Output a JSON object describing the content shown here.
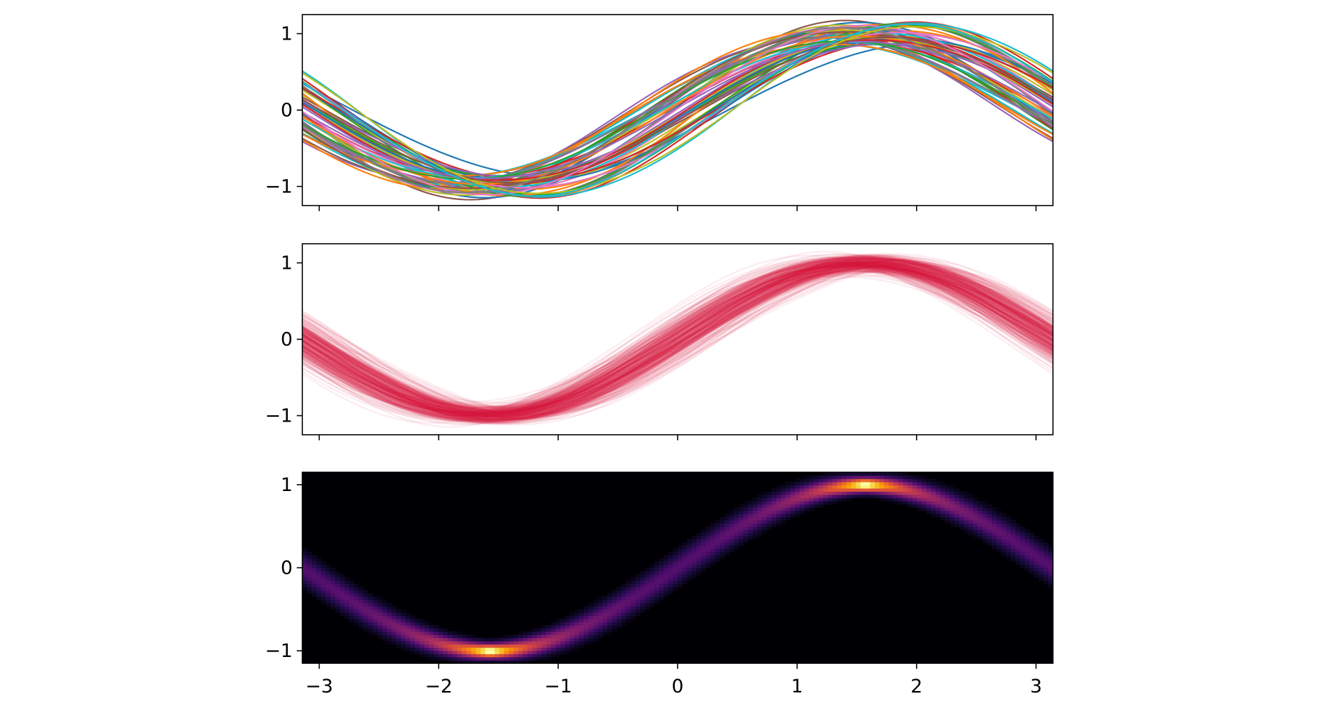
{
  "chart_data": [
    {
      "type": "line",
      "panel": "top",
      "description_of_series": "many noisy sine curves, one color each (tab10 cycle)",
      "function": "y = a*sin(x + phase)",
      "xlim": [
        -3.14159,
        3.14159
      ],
      "ylim": [
        -1.25,
        1.25
      ],
      "x_ticks": [
        -3,
        -2,
        -1,
        0,
        1,
        2,
        3
      ],
      "x_tick_labels_visible": false,
      "y_ticks": [
        -1,
        0,
        1
      ],
      "y_tick_labels": [
        "−1",
        "0",
        "1"
      ],
      "series_count": 60,
      "amplitude_range": [
        0.85,
        1.15
      ],
      "phase_range": [
        -0.45,
        0.45
      ],
      "colors": [
        "#1f77b4",
        "#ff7f0e",
        "#2ca02c",
        "#d62728",
        "#9467bd",
        "#8c564b",
        "#e377c2",
        "#7f7f7f",
        "#bcbd22",
        "#17becf"
      ],
      "grid": false
    },
    {
      "type": "line",
      "panel": "middle",
      "description_of_series": "many noisy sine curves drawn in crimson with very low alpha",
      "function": "y = a*sin(x + phase)",
      "xlim": [
        -3.14159,
        3.14159
      ],
      "ylim": [
        -1.25,
        1.25
      ],
      "x_ticks": [
        -3,
        -2,
        -1,
        0,
        1,
        2,
        3
      ],
      "x_tick_labels_visible": false,
      "y_ticks": [
        -1,
        0,
        1
      ],
      "y_tick_labels": [
        "−1",
        "0",
        "1"
      ],
      "series_count": 300,
      "color": "#dc143c",
      "alpha": 0.035,
      "grid": false
    },
    {
      "type": "heatmap",
      "panel": "bottom",
      "description_of_series": "2D histogram of the same sine curves (inferno colormap)",
      "xlim": [
        -3.14159,
        3.14159
      ],
      "ylim": [
        -1.15,
        1.15
      ],
      "x_ticks": [
        -3,
        -2,
        -1,
        0,
        1,
        2,
        3
      ],
      "x_tick_labels": [
        "−3",
        "−2",
        "−1",
        "0",
        "1",
        "2",
        "3"
      ],
      "y_ticks": [
        -1,
        0,
        1
      ],
      "y_tick_labels": [
        "−1",
        "0",
        "1"
      ],
      "x_bins": 160,
      "y_bins": 60,
      "colormap": "inferno",
      "colormap_stops": [
        "#000004",
        "#1b0c41",
        "#4a0c6b",
        "#781c6d",
        "#a52c60",
        "#cf4446",
        "#ed6925",
        "#fb9b06",
        "#f7d13d",
        "#fcffa4"
      ],
      "grid": false
    }
  ]
}
